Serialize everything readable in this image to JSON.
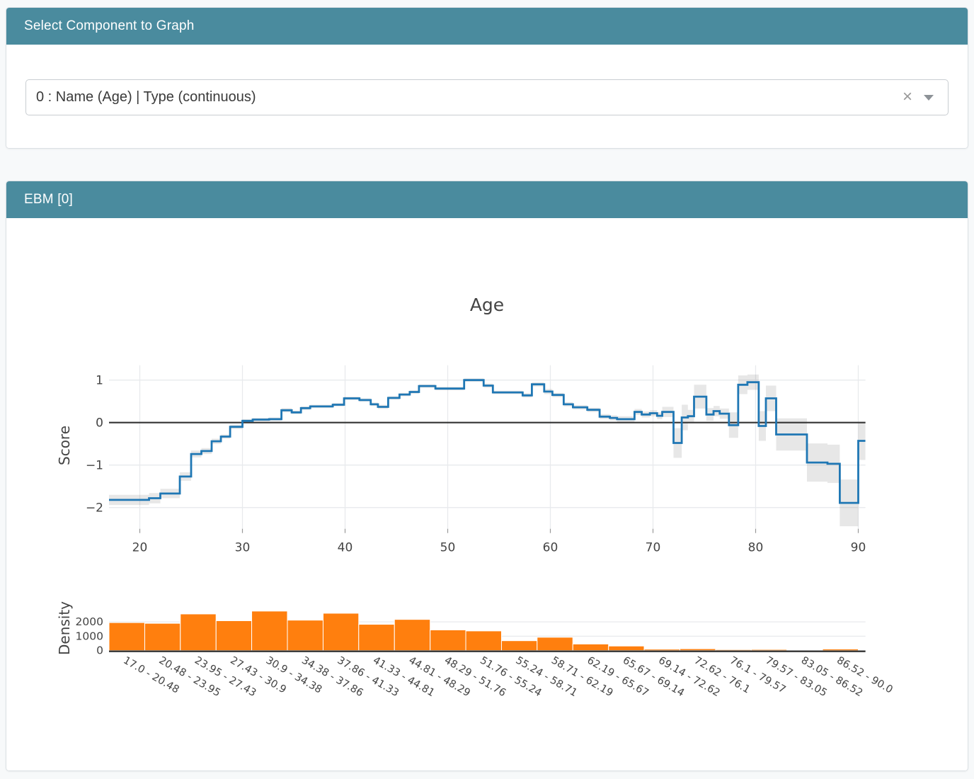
{
  "colors": {
    "header_bg": "#4a8b9e",
    "line": "#1f77b4",
    "band": "rgba(68,68,68,0.13)",
    "bar": "#ff7f0e",
    "grid": "#e8eaed",
    "zero_line": "#333333",
    "axis_text": "#444444"
  },
  "selector_card": {
    "title": "Select Component to Graph",
    "dropdown": {
      "value": "0 : Name (Age) | Type (continuous)",
      "clear_icon": "×"
    }
  },
  "ebm_card": {
    "title": "EBM [0]"
  },
  "chart_data": [
    {
      "type": "line",
      "title": "Age",
      "xlabel": "",
      "ylabel": "Score",
      "x_ticks": [
        20,
        30,
        40,
        50,
        60,
        70,
        80,
        90
      ],
      "y_ticks": [
        1,
        0,
        -1,
        -2
      ],
      "xlim": [
        17,
        90.7
      ],
      "ylim": [
        -2.5,
        1.35
      ],
      "grid": true,
      "zero_line": true,
      "legend_position": "none",
      "series": [
        {
          "name": "Score",
          "mode": "step-after-with-band",
          "x_end": 90.7,
          "points": [
            [
              17.0,
              -1.82,
              0.12
            ],
            [
              20.9,
              -1.78,
              0.12
            ],
            [
              22.0,
              -1.67,
              0.11
            ],
            [
              23.9,
              -1.27,
              0.1
            ],
            [
              25.0,
              -0.74,
              0.08
            ],
            [
              26.0,
              -0.67,
              0.07
            ],
            [
              27.0,
              -0.44,
              0.06
            ],
            [
              27.9,
              -0.33,
              0.05
            ],
            [
              28.8,
              -0.1,
              0.05
            ],
            [
              30.0,
              0.04,
              0.04
            ],
            [
              31.0,
              0.07,
              0.04
            ],
            [
              32.6,
              0.08,
              0.04
            ],
            [
              33.8,
              0.29,
              0.05
            ],
            [
              34.8,
              0.24,
              0.04
            ],
            [
              35.7,
              0.34,
              0.04
            ],
            [
              36.6,
              0.38,
              0.04
            ],
            [
              38.8,
              0.42,
              0.04
            ],
            [
              39.9,
              0.57,
              0.04
            ],
            [
              41.4,
              0.53,
              0.04
            ],
            [
              42.5,
              0.43,
              0.04
            ],
            [
              43.2,
              0.37,
              0.05
            ],
            [
              44.2,
              0.58,
              0.04
            ],
            [
              45.3,
              0.66,
              0.04
            ],
            [
              46.3,
              0.72,
              0.04
            ],
            [
              47.2,
              0.86,
              0.04
            ],
            [
              48.8,
              0.8,
              0.04
            ],
            [
              51.6,
              1.0,
              0.04
            ],
            [
              53.5,
              0.87,
              0.05
            ],
            [
              54.4,
              0.71,
              0.04
            ],
            [
              57.3,
              0.64,
              0.05
            ],
            [
              58.2,
              0.9,
              0.05
            ],
            [
              59.4,
              0.73,
              0.06
            ],
            [
              60.2,
              0.65,
              0.05
            ],
            [
              61.3,
              0.43,
              0.05
            ],
            [
              62.2,
              0.36,
              0.05
            ],
            [
              63.6,
              0.3,
              0.05
            ],
            [
              64.8,
              0.14,
              0.06
            ],
            [
              65.8,
              0.11,
              0.06
            ],
            [
              66.5,
              0.08,
              0.07
            ],
            [
              68.2,
              0.25,
              0.07
            ],
            [
              68.9,
              0.19,
              0.07
            ],
            [
              69.7,
              0.22,
              0.07
            ],
            [
              70.4,
              0.16,
              0.08
            ],
            [
              70.9,
              0.25,
              0.12
            ],
            [
              72.0,
              -0.48,
              0.35
            ],
            [
              72.8,
              0.12,
              0.3
            ],
            [
              73.4,
              0.15,
              0.15
            ],
            [
              74.0,
              0.61,
              0.28
            ],
            [
              75.2,
              0.19,
              0.15
            ],
            [
              75.9,
              0.27,
              0.12
            ],
            [
              76.5,
              0.21,
              0.12
            ],
            [
              77.4,
              -0.06,
              0.3
            ],
            [
              78.3,
              0.89,
              0.22
            ],
            [
              79.2,
              0.95,
              0.18
            ],
            [
              80.3,
              -0.08,
              0.35
            ],
            [
              81.0,
              0.57,
              0.3
            ],
            [
              82.0,
              -0.28,
              0.38
            ],
            [
              85.0,
              -0.94,
              0.45
            ],
            [
              87.0,
              -0.97,
              0.45
            ],
            [
              88.2,
              -1.89,
              0.55
            ],
            [
              90.0,
              -0.43,
              0.45
            ]
          ]
        }
      ]
    },
    {
      "type": "bar",
      "title": "",
      "xlabel": "",
      "ylabel": "Density",
      "y_ticks": [
        0,
        1000,
        2000
      ],
      "ylim": [
        0,
        2915
      ],
      "tick_angle": 30,
      "bin_edges": [
        17.0,
        20.48,
        23.95,
        27.43,
        30.9,
        34.38,
        37.86,
        41.33,
        44.81,
        48.29,
        51.76,
        55.24,
        58.71,
        62.19,
        65.67,
        69.14,
        72.62,
        76.1,
        79.57,
        83.05,
        86.52,
        90.0
      ],
      "categories": [
        "17.0 - 20.48",
        "20.48 - 23.95",
        "23.95 - 27.43",
        "27.43 - 30.9",
        "30.9 - 34.38",
        "34.38 - 37.86",
        "37.86 - 41.33",
        "41.33 - 44.81",
        "44.81 - 48.29",
        "48.29 - 51.76",
        "51.76 - 55.24",
        "55.24 - 58.71",
        "58.71 - 62.19",
        "62.19 - 65.67",
        "65.67 - 69.14",
        "69.14 - 72.62",
        "72.62 - 76.1",
        "76.1 - 79.57",
        "79.57 - 83.05",
        "83.05 - 86.52",
        "86.52 - 90.0"
      ],
      "values": [
        1950,
        1900,
        2550,
        2080,
        2750,
        2120,
        2600,
        1830,
        2170,
        1440,
        1370,
        690,
        930,
        460,
        320,
        100,
        130,
        70,
        80,
        30,
        110
      ]
    }
  ]
}
